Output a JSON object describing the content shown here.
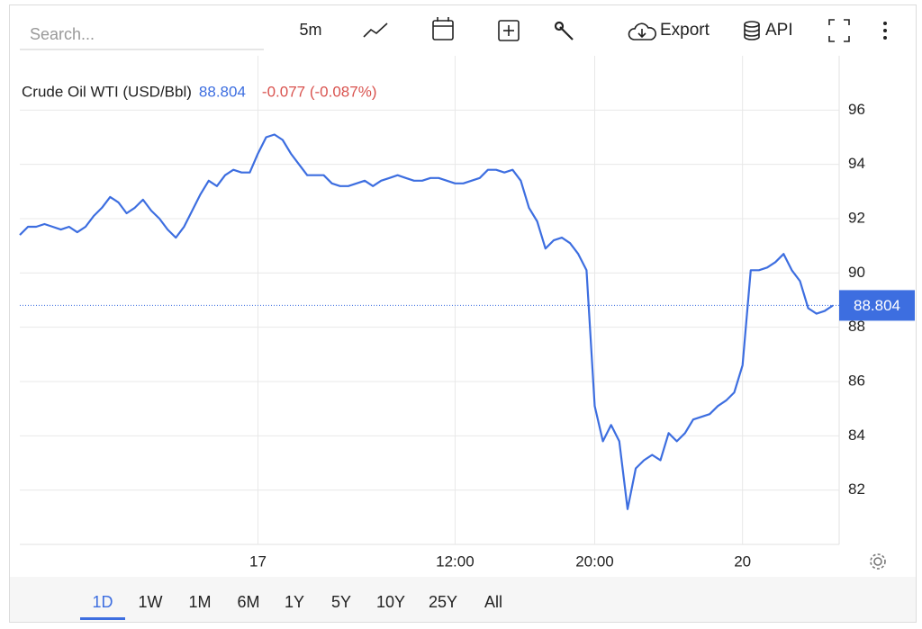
{
  "toolbar": {
    "search_placeholder": "Search...",
    "interval": "5m",
    "export": "Export",
    "api": "API"
  },
  "chart_data": {
    "type": "line",
    "title": "Crude Oil WTI (USD/Bbl)",
    "last_price": 88.804,
    "change": "-0.077 (-0.087%)",
    "color": "#3d6ee0",
    "change_color": "#d9534f",
    "values": [
      91.4,
      91.7,
      91.7,
      91.8,
      91.7,
      91.6,
      91.7,
      91.5,
      91.7,
      92.1,
      92.4,
      92.8,
      92.6,
      92.2,
      92.4,
      92.7,
      92.3,
      92.0,
      91.6,
      91.3,
      91.7,
      92.3,
      92.9,
      93.4,
      93.2,
      93.6,
      93.8,
      93.7,
      93.7,
      94.4,
      95.0,
      95.1,
      94.9,
      94.4,
      94.0,
      93.6,
      93.6,
      93.6,
      93.3,
      93.2,
      93.2,
      93.3,
      93.4,
      93.2,
      93.4,
      93.5,
      93.6,
      93.5,
      93.4,
      93.4,
      93.5,
      93.5,
      93.4,
      93.3,
      93.3,
      93.4,
      93.5,
      93.8,
      93.8,
      93.7,
      93.8,
      93.4,
      92.4,
      91.9,
      90.9,
      91.2,
      91.3,
      91.1,
      90.7,
      90.1,
      85.1,
      83.8,
      84.4,
      83.8,
      81.3,
      82.8,
      83.1,
      83.3,
      83.1,
      84.1,
      83.8,
      84.1,
      84.6,
      84.7,
      84.8,
      85.1,
      85.3,
      85.6,
      86.6,
      90.1,
      90.1,
      90.2,
      90.4,
      90.7,
      90.1,
      89.7,
      88.7,
      88.5,
      88.6,
      88.8
    ],
    "xlim": [
      0,
      99
    ],
    "xticks": [
      {
        "value": 29,
        "label": "17"
      },
      {
        "value": 53,
        "label": "12:00"
      },
      {
        "value": 70,
        "label": "20:00"
      },
      {
        "value": 88,
        "label": "20"
      }
    ],
    "ylim": [
      80,
      98
    ],
    "yticks": [
      82,
      84,
      86,
      88,
      90,
      92,
      94,
      96
    ],
    "grid": true
  },
  "range_buttons": [
    "1D",
    "1W",
    "1M",
    "6M",
    "1Y",
    "5Y",
    "10Y",
    "25Y",
    "All"
  ],
  "active_range": 0
}
